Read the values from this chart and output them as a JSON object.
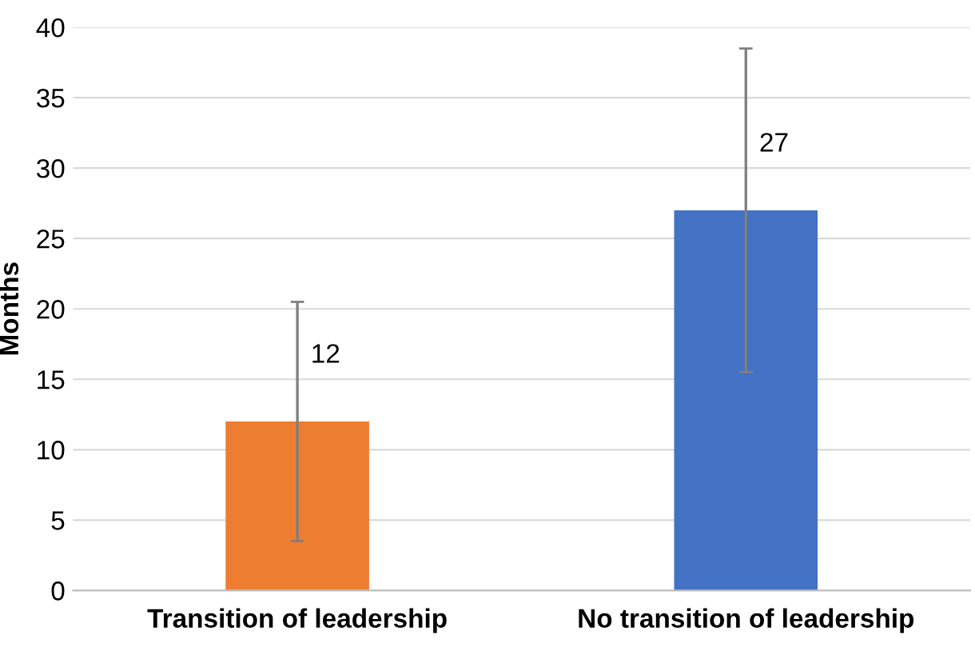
{
  "chart_data": {
    "type": "bar",
    "ylabel": "Months",
    "categories": [
      "Transition of leadership",
      "No transition of leadership"
    ],
    "values": [
      12,
      27
    ],
    "colors": [
      "#ed7d31",
      "#4472c4"
    ],
    "errors": [
      [
        3.5,
        20.5
      ],
      [
        15.5,
        38.5
      ]
    ],
    "data_labels": true,
    "ylim": [
      0,
      40
    ],
    "yticks": [
      0,
      5,
      10,
      15,
      20,
      25,
      30,
      35,
      40
    ],
    "grid": "y",
    "legend": false
  }
}
